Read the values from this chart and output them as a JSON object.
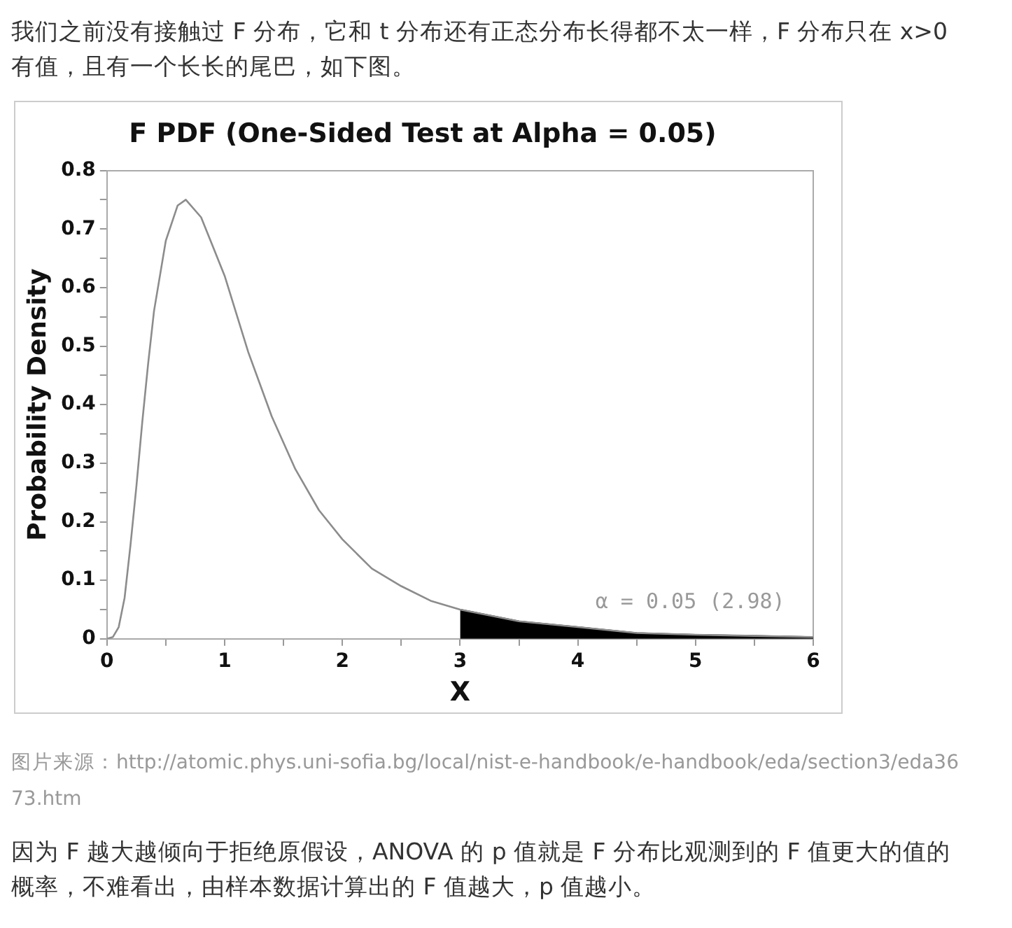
{
  "chart_data": {
    "type": "line",
    "title": "F PDF (One-Sided Test at Alpha = 0.05)",
    "xlabel": "X",
    "ylabel": "Probability Density",
    "series": [
      {
        "color": "#8c8c8c",
        "x": [
          0,
          0.05,
          0.1,
          0.15,
          0.2,
          0.25,
          0.3,
          0.35,
          0.4,
          0.5,
          0.6,
          0.67,
          0.8,
          0.9,
          1,
          1.2,
          1.4,
          1.6,
          1.8,
          2,
          2.25,
          2.5,
          2.75,
          3,
          3.5,
          4,
          4.5,
          5,
          5.5,
          6
        ],
        "values": [
          0,
          0.003,
          0.02,
          0.07,
          0.16,
          0.26,
          0.37,
          0.47,
          0.56,
          0.68,
          0.74,
          0.75,
          0.72,
          0.67,
          0.62,
          0.49,
          0.38,
          0.29,
          0.22,
          0.17,
          0.12,
          0.09,
          0.065,
          0.05,
          0.03,
          0.02,
          0.01,
          0.007,
          0.005,
          0.003
        ]
      },
      {
        "type": "area",
        "color": "#000000",
        "x": [
          3,
          3.5,
          4,
          4.5,
          5,
          5.5,
          6
        ],
        "values": [
          0.05,
          0.03,
          0.02,
          0.01,
          0.007,
          0.005,
          0.003
        ]
      }
    ],
    "xlim": [
      0,
      6
    ],
    "xticks": [
      0,
      {
        "value": 0.5,
        "label": null
      },
      1,
      {
        "value": 1.5,
        "label": null
      },
      2,
      {
        "value": 2.5,
        "label": null
      },
      3,
      {
        "value": 3.5,
        "label": null
      },
      4,
      {
        "value": 4.5,
        "label": null
      },
      5,
      {
        "value": 5.5,
        "label": null
      },
      6
    ],
    "ylim": [
      0,
      0.8
    ],
    "yticks": [
      0,
      {
        "value": 0.05,
        "label": null
      },
      0.1,
      {
        "value": 0.15,
        "label": null
      },
      0.2,
      {
        "value": 0.25,
        "label": null
      },
      0.3,
      {
        "value": 0.35,
        "label": null
      },
      0.4,
      {
        "value": 0.45,
        "label": null
      },
      0.5,
      {
        "value": 0.55,
        "label": null
      },
      0.6,
      {
        "value": 0.65,
        "label": null
      },
      0.7,
      {
        "value": 0.75,
        "label": null
      },
      0.8
    ],
    "grid": false,
    "legend": false,
    "annotations": [
      "我们之前没有接触过 F 分布，它和 t 分布还有正态分布长得都不太一样，F 分布只在 x>0 有值，且有一个长长的尾巴，如下图。",
      "α = 0.05 (2.98)",
      "图片来源：http://atomic.phys.uni-sofia.bg/local/nist-e-handbook/e-handbook/eda/section3/eda3673.htm",
      "因为 F 越大越倾向于拒绝原假设，ANOVA 的 p 值就是 F 分布比观测到的 F 值更大的值的概率，不难看出，由样本数据计算出的 F 值越大，p 值越小。"
    ]
  }
}
